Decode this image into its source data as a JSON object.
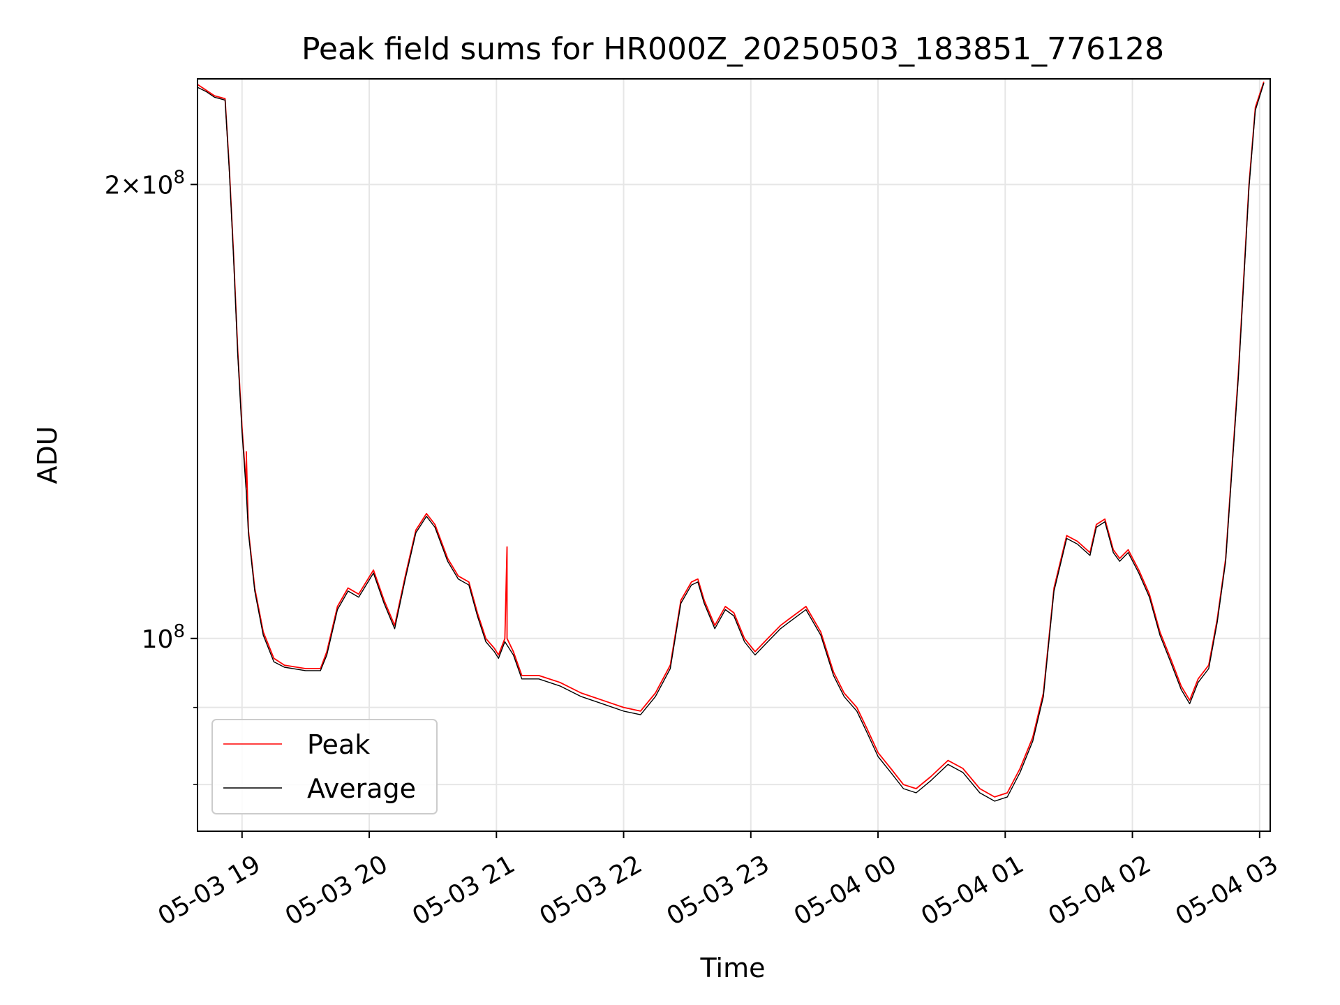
{
  "chart_data": {
    "type": "line",
    "title": "Peak field sums for HR000Z_20250503_183851_776128",
    "xlabel": "Time",
    "ylabel": "ADU",
    "yscale": "log",
    "xlim": [
      "2025-05-03 18:39",
      "2025-05-04 03:05"
    ],
    "ylim": [
      74500000,
      235000000
    ],
    "grid": true,
    "legend_position": "lower-left",
    "x_ticks": [
      {
        "t": "2025-05-03 19:00",
        "label": "05-03 19"
      },
      {
        "t": "2025-05-03 20:00",
        "label": "05-03 20"
      },
      {
        "t": "2025-05-03 21:00",
        "label": "05-03 21"
      },
      {
        "t": "2025-05-03 22:00",
        "label": "05-03 22"
      },
      {
        "t": "2025-05-03 23:00",
        "label": "05-03 23"
      },
      {
        "t": "2025-05-04 00:00",
        "label": "05-04 00"
      },
      {
        "t": "2025-05-04 01:00",
        "label": "05-04 01"
      },
      {
        "t": "2025-05-04 02:00",
        "label": "05-04 02"
      },
      {
        "t": "2025-05-04 03:00",
        "label": "05-04 03"
      }
    ],
    "y_major_ticks": [
      {
        "value": 100000000,
        "mantissa": "",
        "exp": "8"
      },
      {
        "value": 200000000,
        "mantissa": "2",
        "exp": "8"
      }
    ],
    "y_minor_ticks": [
      80000000,
      90000000
    ],
    "series": [
      {
        "name": "Peak",
        "color": "#ff0000",
        "points": [
          [
            "2025-05-03 18:39",
            233000000
          ],
          [
            "2025-05-03 18:43",
            231000000
          ],
          [
            "2025-05-03 18:47",
            229000000
          ],
          [
            "2025-05-03 18:52",
            228000000
          ],
          [
            "2025-05-03 18:54",
            205000000
          ],
          [
            "2025-05-03 18:56",
            180000000
          ],
          [
            "2025-05-03 18:58",
            155000000
          ],
          [
            "2025-05-03 19:00",
            138000000
          ],
          [
            "2025-05-03 19:02",
            126000000
          ],
          [
            "2025-05-03 19:02",
            133000000
          ],
          [
            "2025-05-03 19:03",
            118000000
          ],
          [
            "2025-05-03 19:06",
            108000000
          ],
          [
            "2025-05-03 19:10",
            101000000
          ],
          [
            "2025-05-03 19:15",
            97000000
          ],
          [
            "2025-05-03 19:20",
            96000000
          ],
          [
            "2025-05-03 19:30",
            95500000
          ],
          [
            "2025-05-03 19:37",
            95500000
          ],
          [
            "2025-05-03 19:40",
            98000000
          ],
          [
            "2025-05-03 19:45",
            105000000
          ],
          [
            "2025-05-03 19:50",
            108000000
          ],
          [
            "2025-05-03 19:55",
            107000000
          ],
          [
            "2025-05-03 20:02",
            111000000
          ],
          [
            "2025-05-03 20:07",
            106000000
          ],
          [
            "2025-05-03 20:12",
            102000000
          ],
          [
            "2025-05-03 20:17",
            110000000
          ],
          [
            "2025-05-03 20:22",
            118000000
          ],
          [
            "2025-05-03 20:27",
            121000000
          ],
          [
            "2025-05-03 20:31",
            119000000
          ],
          [
            "2025-05-03 20:37",
            113000000
          ],
          [
            "2025-05-03 20:42",
            110000000
          ],
          [
            "2025-05-03 20:47",
            109000000
          ],
          [
            "2025-05-03 20:51",
            104000000
          ],
          [
            "2025-05-03 20:55",
            100000000
          ],
          [
            "2025-05-03 20:59",
            98500000
          ],
          [
            "2025-05-03 21:01",
            97500000
          ],
          [
            "2025-05-03 21:04",
            100000000
          ],
          [
            "2025-05-03 21:05",
            115000000
          ],
          [
            "2025-05-03 21:05",
            100000000
          ],
          [
            "2025-05-03 21:08",
            98000000
          ],
          [
            "2025-05-03 21:12",
            94500000
          ],
          [
            "2025-05-03 21:20",
            94500000
          ],
          [
            "2025-05-03 21:30",
            93500000
          ],
          [
            "2025-05-03 21:40",
            92000000
          ],
          [
            "2025-05-03 21:50",
            91000000
          ],
          [
            "2025-05-03 22:00",
            90000000
          ],
          [
            "2025-05-03 22:08",
            89500000
          ],
          [
            "2025-05-03 22:15",
            92000000
          ],
          [
            "2025-05-03 22:22",
            96000000
          ],
          [
            "2025-05-03 22:27",
            106000000
          ],
          [
            "2025-05-03 22:32",
            109000000
          ],
          [
            "2025-05-03 22:35",
            109500000
          ],
          [
            "2025-05-03 22:38",
            106000000
          ],
          [
            "2025-05-03 22:43",
            102000000
          ],
          [
            "2025-05-03 22:48",
            105000000
          ],
          [
            "2025-05-03 22:52",
            104000000
          ],
          [
            "2025-05-03 22:57",
            100000000
          ],
          [
            "2025-05-03 23:02",
            98000000
          ],
          [
            "2025-05-03 23:08",
            100000000
          ],
          [
            "2025-05-03 23:14",
            102000000
          ],
          [
            "2025-05-03 23:18",
            103000000
          ],
          [
            "2025-05-03 23:26",
            105000000
          ],
          [
            "2025-05-03 23:33",
            101000000
          ],
          [
            "2025-05-03 23:39",
            95000000
          ],
          [
            "2025-05-03 23:44",
            92000000
          ],
          [
            "2025-05-03 23:50",
            90000000
          ],
          [
            "2025-05-03 23:55",
            87000000
          ],
          [
            "2025-05-04 00:00",
            84000000
          ],
          [
            "2025-05-04 00:06",
            82000000
          ],
          [
            "2025-05-04 00:12",
            80000000
          ],
          [
            "2025-05-04 00:18",
            79500000
          ],
          [
            "2025-05-04 00:25",
            81000000
          ],
          [
            "2025-05-04 00:33",
            83000000
          ],
          [
            "2025-05-04 00:40",
            82000000
          ],
          [
            "2025-05-04 00:48",
            79500000
          ],
          [
            "2025-05-04 00:55",
            78500000
          ],
          [
            "2025-05-04 01:01",
            79000000
          ],
          [
            "2025-05-04 01:07",
            82000000
          ],
          [
            "2025-05-04 01:13",
            86000000
          ],
          [
            "2025-05-04 01:18",
            92000000
          ],
          [
            "2025-05-04 01:23",
            108000000
          ],
          [
            "2025-05-04 01:29",
            117000000
          ],
          [
            "2025-05-04 01:34",
            116000000
          ],
          [
            "2025-05-04 01:40",
            114000000
          ],
          [
            "2025-05-04 01:43",
            119000000
          ],
          [
            "2025-05-04 01:47",
            120000000
          ],
          [
            "2025-05-04 01:51",
            114500000
          ],
          [
            "2025-05-04 01:54",
            113000000
          ],
          [
            "2025-05-04 01:58",
            114500000
          ],
          [
            "2025-05-04 02:03",
            111000000
          ],
          [
            "2025-05-04 02:08",
            107000000
          ],
          [
            "2025-05-04 02:13",
            101000000
          ],
          [
            "2025-05-04 02:18",
            97000000
          ],
          [
            "2025-05-04 02:23",
            93000000
          ],
          [
            "2025-05-04 02:27",
            91000000
          ],
          [
            "2025-05-04 02:31",
            94000000
          ],
          [
            "2025-05-04 02:36",
            96000000
          ],
          [
            "2025-05-04 02:40",
            103000000
          ],
          [
            "2025-05-04 02:44",
            113000000
          ],
          [
            "2025-05-04 02:50",
            150000000
          ],
          [
            "2025-05-04 02:55",
            200000000
          ],
          [
            "2025-05-04 02:58",
            225000000
          ],
          [
            "2025-05-04 03:02",
            234000000
          ]
        ]
      },
      {
        "name": "Average",
        "color": "#000000",
        "points": [
          [
            "2025-05-03 18:39",
            232000000
          ],
          [
            "2025-05-03 18:43",
            230500000
          ],
          [
            "2025-05-03 18:47",
            228500000
          ],
          [
            "2025-05-03 18:52",
            227500000
          ],
          [
            "2025-05-03 18:54",
            204000000
          ],
          [
            "2025-05-03 18:56",
            179000000
          ],
          [
            "2025-05-03 18:58",
            154000000
          ],
          [
            "2025-05-03 19:00",
            137000000
          ],
          [
            "2025-05-03 19:02",
            125000000
          ],
          [
            "2025-05-03 19:03",
            117500000
          ],
          [
            "2025-05-03 19:06",
            107500000
          ],
          [
            "2025-05-03 19:10",
            100500000
          ],
          [
            "2025-05-03 19:15",
            96500000
          ],
          [
            "2025-05-03 19:20",
            95700000
          ],
          [
            "2025-05-03 19:30",
            95200000
          ],
          [
            "2025-05-03 19:37",
            95200000
          ],
          [
            "2025-05-03 19:40",
            97500000
          ],
          [
            "2025-05-03 19:45",
            104500000
          ],
          [
            "2025-05-03 19:50",
            107500000
          ],
          [
            "2025-05-03 19:55",
            106500000
          ],
          [
            "2025-05-03 20:02",
            110500000
          ],
          [
            "2025-05-03 20:07",
            105500000
          ],
          [
            "2025-05-03 20:12",
            101500000
          ],
          [
            "2025-05-03 20:17",
            109500000
          ],
          [
            "2025-05-03 20:22",
            117500000
          ],
          [
            "2025-05-03 20:27",
            120500000
          ],
          [
            "2025-05-03 20:31",
            118500000
          ],
          [
            "2025-05-03 20:37",
            112500000
          ],
          [
            "2025-05-03 20:42",
            109500000
          ],
          [
            "2025-05-03 20:47",
            108500000
          ],
          [
            "2025-05-03 20:51",
            103500000
          ],
          [
            "2025-05-03 20:55",
            99500000
          ],
          [
            "2025-05-03 20:59",
            98000000
          ],
          [
            "2025-05-03 21:01",
            97000000
          ],
          [
            "2025-05-03 21:04",
            99500000
          ],
          [
            "2025-05-03 21:08",
            97500000
          ],
          [
            "2025-05-03 21:12",
            94000000
          ],
          [
            "2025-05-03 21:20",
            94000000
          ],
          [
            "2025-05-03 21:30",
            93000000
          ],
          [
            "2025-05-03 21:40",
            91500000
          ],
          [
            "2025-05-03 21:50",
            90500000
          ],
          [
            "2025-05-03 22:00",
            89500000
          ],
          [
            "2025-05-03 22:08",
            89000000
          ],
          [
            "2025-05-03 22:15",
            91500000
          ],
          [
            "2025-05-03 22:22",
            95500000
          ],
          [
            "2025-05-03 22:27",
            105500000
          ],
          [
            "2025-05-03 22:32",
            108500000
          ],
          [
            "2025-05-03 22:35",
            109000000
          ],
          [
            "2025-05-03 22:38",
            105500000
          ],
          [
            "2025-05-03 22:43",
            101500000
          ],
          [
            "2025-05-03 22:48",
            104500000
          ],
          [
            "2025-05-03 22:52",
            103500000
          ],
          [
            "2025-05-03 22:57",
            99500000
          ],
          [
            "2025-05-03 23:02",
            97500000
          ],
          [
            "2025-05-03 23:08",
            99500000
          ],
          [
            "2025-05-03 23:14",
            101500000
          ],
          [
            "2025-05-03 23:18",
            102500000
          ],
          [
            "2025-05-03 23:26",
            104500000
          ],
          [
            "2025-05-03 23:33",
            100500000
          ],
          [
            "2025-05-03 23:39",
            94500000
          ],
          [
            "2025-05-03 23:44",
            91500000
          ],
          [
            "2025-05-03 23:50",
            89500000
          ],
          [
            "2025-05-03 23:55",
            86500000
          ],
          [
            "2025-05-04 00:00",
            83500000
          ],
          [
            "2025-05-04 00:06",
            81500000
          ],
          [
            "2025-05-04 00:12",
            79500000
          ],
          [
            "2025-05-04 00:18",
            79000000
          ],
          [
            "2025-05-04 00:25",
            80500000
          ],
          [
            "2025-05-04 00:33",
            82500000
          ],
          [
            "2025-05-04 00:40",
            81500000
          ],
          [
            "2025-05-04 00:48",
            79000000
          ],
          [
            "2025-05-04 00:55",
            78000000
          ],
          [
            "2025-05-04 01:01",
            78500000
          ],
          [
            "2025-05-04 01:07",
            81500000
          ],
          [
            "2025-05-04 01:13",
            85500000
          ],
          [
            "2025-05-04 01:18",
            91500000
          ],
          [
            "2025-05-04 01:23",
            107500000
          ],
          [
            "2025-05-04 01:29",
            116500000
          ],
          [
            "2025-05-04 01:34",
            115500000
          ],
          [
            "2025-05-04 01:40",
            113500000
          ],
          [
            "2025-05-04 01:43",
            118500000
          ],
          [
            "2025-05-04 01:47",
            119500000
          ],
          [
            "2025-05-04 01:51",
            114000000
          ],
          [
            "2025-05-04 01:54",
            112500000
          ],
          [
            "2025-05-04 01:58",
            114000000
          ],
          [
            "2025-05-04 02:03",
            110500000
          ],
          [
            "2025-05-04 02:08",
            106500000
          ],
          [
            "2025-05-04 02:13",
            100500000
          ],
          [
            "2025-05-04 02:18",
            96500000
          ],
          [
            "2025-05-04 02:23",
            92500000
          ],
          [
            "2025-05-04 02:27",
            90500000
          ],
          [
            "2025-05-04 02:31",
            93500000
          ],
          [
            "2025-05-04 02:36",
            95500000
          ],
          [
            "2025-05-04 02:40",
            102500000
          ],
          [
            "2025-05-04 02:44",
            112500000
          ],
          [
            "2025-05-04 02:50",
            149000000
          ],
          [
            "2025-05-04 02:55",
            199000000
          ],
          [
            "2025-05-04 02:58",
            224000000
          ],
          [
            "2025-05-04 03:02",
            233500000
          ]
        ]
      }
    ]
  }
}
